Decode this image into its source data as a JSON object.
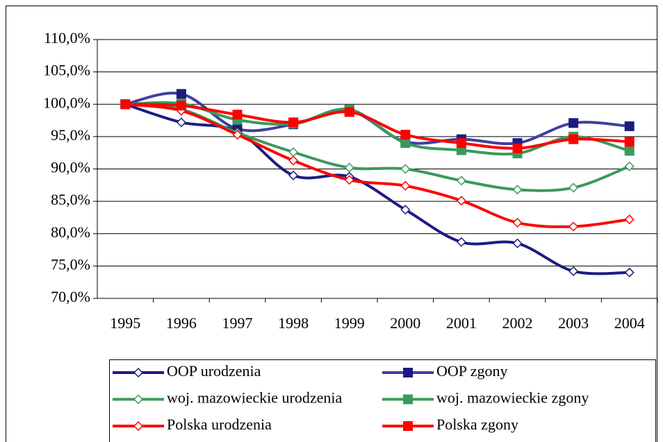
{
  "chart_data": {
    "type": "line",
    "categories": [
      "1995",
      "1996",
      "1997",
      "1998",
      "1999",
      "2000",
      "2001",
      "2002",
      "2003",
      "2004"
    ],
    "series": [
      {
        "name": "OOP urodzenia",
        "color": "#1c1c80",
        "marker": "diamond",
        "values": [
          100,
          97.2,
          95.8,
          89.0,
          88.8,
          83.7,
          78.7,
          78.5,
          74.2,
          74.0
        ]
      },
      {
        "name": "OOP zgony",
        "color": "#3f3fa0",
        "marker": "square",
        "values": [
          100,
          101.6,
          96.2,
          96.9,
          99.0,
          94.2,
          94.6,
          94.0,
          97.1,
          96.6
        ]
      },
      {
        "name": "woj. mazowieckie urodzenia",
        "color": "#3a9a5c",
        "marker": "diamond",
        "values": [
          100,
          99.2,
          95.6,
          92.6,
          90.2,
          90.0,
          88.2,
          86.8,
          87.1,
          90.4
        ]
      },
      {
        "name": "woj. mazowieckie zgony",
        "color": "#3a9a5c",
        "marker": "square",
        "values": [
          100,
          100.1,
          97.6,
          97.0,
          99.2,
          94.0,
          92.9,
          92.4,
          95.0,
          92.8
        ]
      },
      {
        "name": "Polska urodzenia",
        "color": "#ff0000",
        "marker": "diamond",
        "values": [
          100,
          99.0,
          95.3,
          91.3,
          88.3,
          87.4,
          85.1,
          81.7,
          81.1,
          82.2
        ]
      },
      {
        "name": "Polska zgony",
        "color": "#ff0000",
        "marker": "square",
        "values": [
          100,
          99.8,
          98.4,
          97.2,
          98.8,
          95.3,
          94.0,
          93.2,
          94.6,
          94.2
        ]
      }
    ],
    "ylim": [
      70,
      110
    ],
    "yticks": [
      {
        "value": 70,
        "label": "70,0%"
      },
      {
        "value": 75,
        "label": "75,0%"
      },
      {
        "value": 80,
        "label": "80,0%"
      },
      {
        "value": 85,
        "label": "85,0%"
      },
      {
        "value": 90,
        "label": "90,0%"
      },
      {
        "value": 95,
        "label": "95,0%"
      },
      {
        "value": 100,
        "label": "100,0%"
      },
      {
        "value": 105,
        "label": "105,0%"
      },
      {
        "value": 110,
        "label": "110,0%"
      }
    ],
    "grid": true,
    "smooth": true,
    "legend": "bottom"
  }
}
